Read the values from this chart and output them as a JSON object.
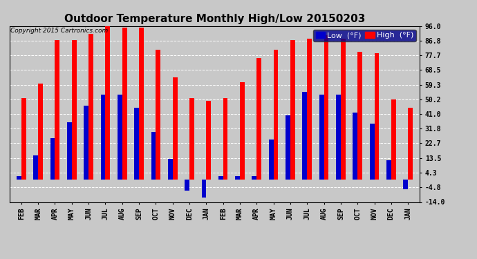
{
  "title": "Outdoor Temperature Monthly High/Low 20150203",
  "copyright": "Copyright 2015 Cartronics.com",
  "legend_low": "Low  (°F)",
  "legend_high": "High  (°F)",
  "months": [
    "FEB",
    "MAR",
    "APR",
    "MAY",
    "JUN",
    "JUL",
    "AUG",
    "SEP",
    "OCT",
    "NOV",
    "DEC",
    "JAN",
    "FEB",
    "MAR",
    "APR",
    "MAY",
    "JUN",
    "JUL",
    "AUG",
    "SEP",
    "OCT",
    "NOV",
    "DEC",
    "JAN"
  ],
  "high_values": [
    51,
    60,
    87,
    87,
    91,
    96,
    95,
    95,
    81,
    64,
    51,
    49,
    51,
    61,
    76,
    81,
    87,
    88,
    90,
    88,
    80,
    79,
    50,
    45
  ],
  "low_values": [
    2,
    15,
    26,
    36,
    46,
    53,
    53,
    45,
    30,
    13,
    -7,
    -11,
    2,
    2,
    2,
    25,
    40,
    55,
    53,
    53,
    42,
    35,
    12,
    -6
  ],
  "high_color": "#ff0000",
  "low_color": "#0000cc",
  "bg_color": "#c8c8c8",
  "plot_bg_color": "#c8c8c8",
  "grid_color": "white",
  "yticks": [
    96.0,
    86.8,
    77.7,
    68.5,
    59.3,
    50.2,
    41.0,
    31.8,
    22.7,
    13.5,
    4.3,
    -4.8,
    -14.0
  ],
  "ylim": [
    -14.0,
    96.0
  ],
  "bar_width": 0.28,
  "title_fontsize": 11,
  "tick_fontsize": 7,
  "legend_fontsize": 8,
  "figsize": [
    6.9,
    3.75
  ],
  "dpi": 100
}
